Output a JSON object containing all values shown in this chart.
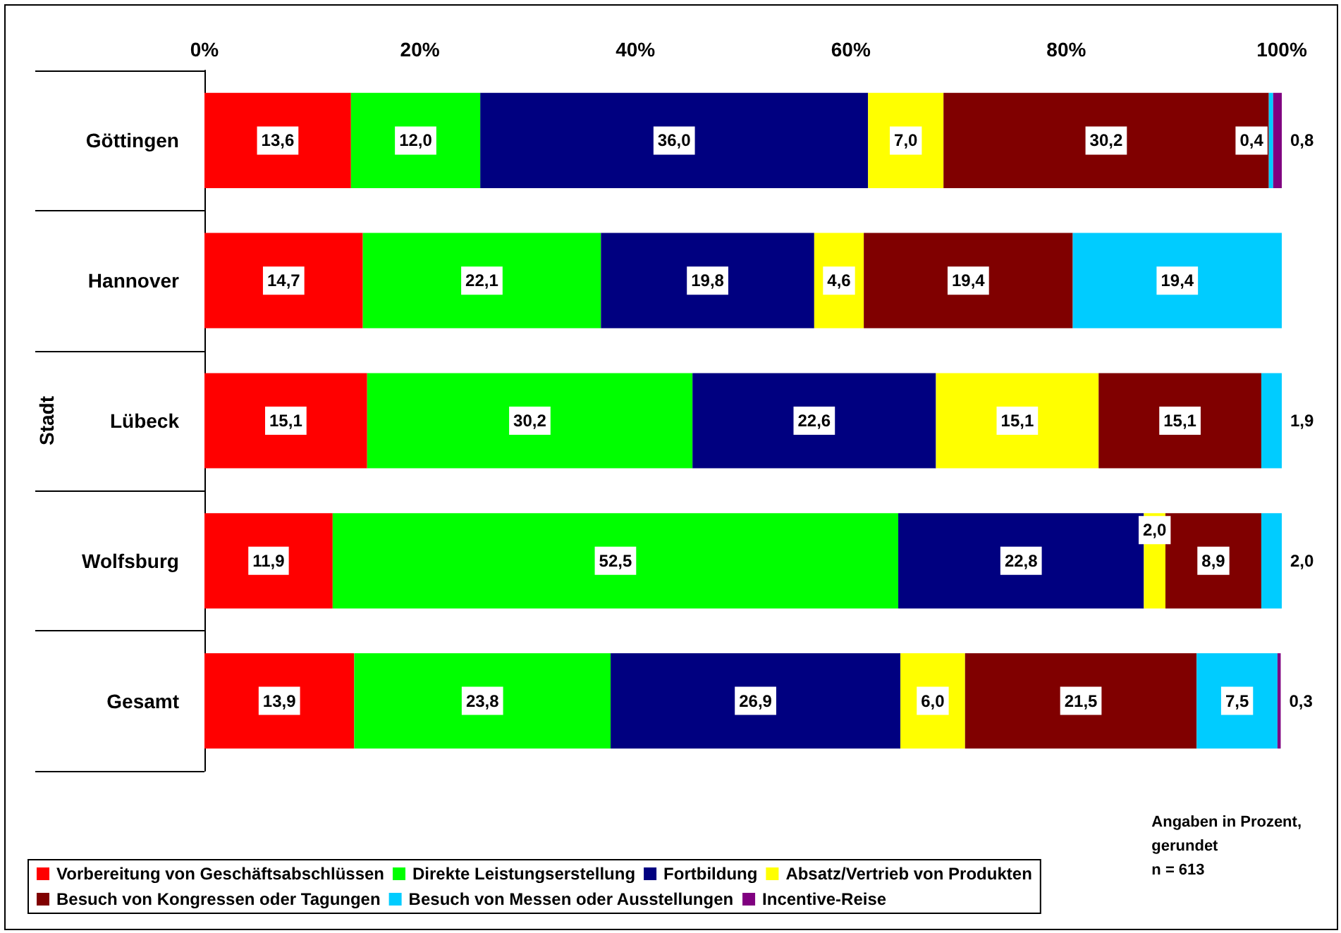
{
  "chart_data": {
    "type": "bar",
    "orientation": "horizontal",
    "stacked": true,
    "ylabel": "Stadt",
    "categories": [
      "Göttingen",
      "Hannover",
      "Lübeck",
      "Wolfsburg",
      "Gesamt"
    ],
    "xlim": [
      0,
      100
    ],
    "xticks": [
      {
        "value": 0,
        "label": "0%"
      },
      {
        "value": 20,
        "label": "20%"
      },
      {
        "value": 40,
        "label": "40%"
      },
      {
        "value": 60,
        "label": "60%"
      },
      {
        "value": 80,
        "label": "80%"
      },
      {
        "value": 100,
        "label": "100%"
      }
    ],
    "grid": false,
    "legend": "bottom",
    "series": [
      {
        "name": "Vorbereitung von Geschäftsabschlüssen",
        "color": "#ff0000",
        "values": [
          13.6,
          14.7,
          15.1,
          11.9,
          13.9
        ],
        "value_labels": [
          "13,6",
          "14,7",
          "15,1",
          "11,9",
          "13,9"
        ]
      },
      {
        "name": "Direkte Leistungserstellung",
        "color": "#00ff00",
        "values": [
          12.0,
          22.1,
          30.2,
          52.5,
          23.8
        ],
        "value_labels": [
          "12,0",
          "22,1",
          "30,2",
          "52,5",
          "23,8"
        ]
      },
      {
        "name": "Fortbildung",
        "color": "#000080",
        "values": [
          36.0,
          19.8,
          22.6,
          22.8,
          26.9
        ],
        "value_labels": [
          "36,0",
          "19,8",
          "22,6",
          "22,8",
          "26,9"
        ]
      },
      {
        "name": "Absatz/Vertrieb von Produkten",
        "color": "#ffff00",
        "values": [
          7.0,
          4.6,
          15.1,
          2.0,
          6.0
        ],
        "value_labels": [
          "7,0",
          "4,6",
          "15,1",
          "2,0",
          "6,0"
        ]
      },
      {
        "name": "Besuch von Kongressen oder Tagungen",
        "color": "#800000",
        "values": [
          30.2,
          19.4,
          15.1,
          8.9,
          21.5
        ],
        "value_labels": [
          "30,2",
          "19,4",
          "15,1",
          "8,9",
          "21,5"
        ]
      },
      {
        "name": "Besuch von Messen oder Ausstellungen",
        "color": "#00ccff",
        "values": [
          0.4,
          19.4,
          1.9,
          2.0,
          7.5
        ],
        "value_labels": [
          "0,4",
          "19,4",
          "1,9",
          "2,0",
          "7,5"
        ]
      },
      {
        "name": "Incentive-Reise",
        "color": "#800080",
        "values": [
          0.8,
          null,
          null,
          null,
          0.3
        ],
        "value_labels": [
          "0,8",
          null,
          null,
          null,
          "0,3"
        ]
      }
    ],
    "annotations": [
      "Angaben in Prozent,\ngerundet\nn = 613"
    ]
  }
}
